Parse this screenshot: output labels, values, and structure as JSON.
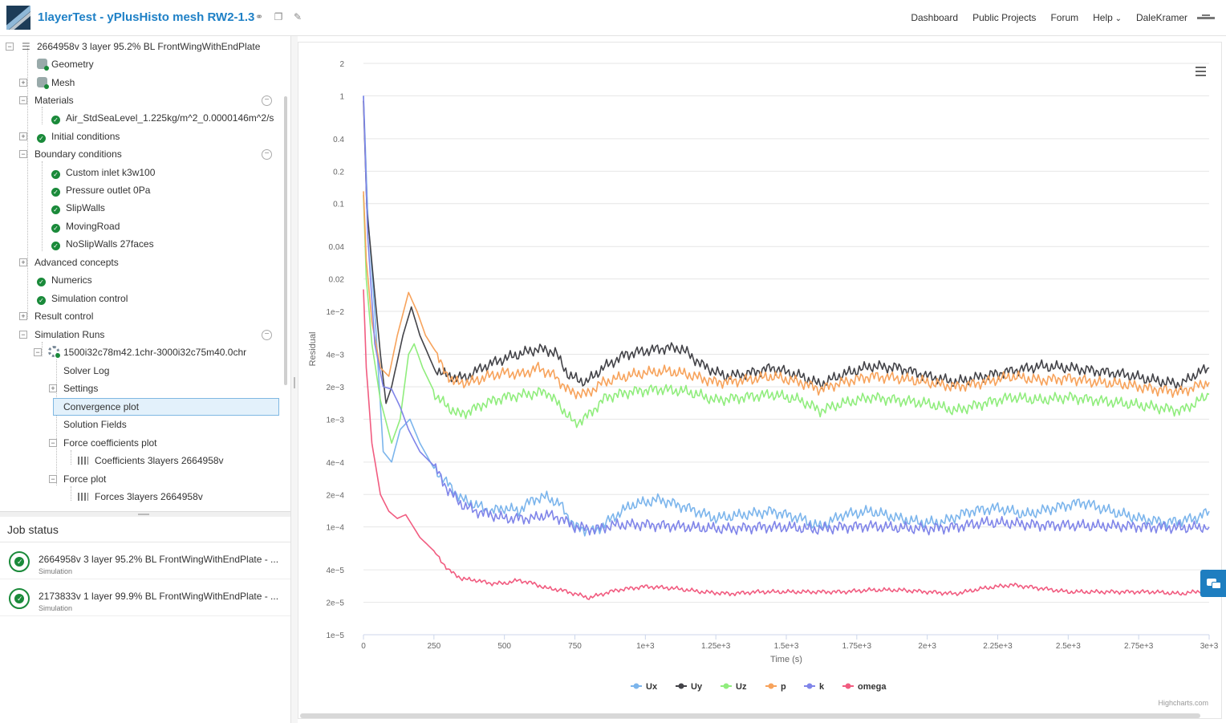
{
  "header": {
    "title": "1layerTest - yPlusHisto mesh RW2-1.3",
    "nav": [
      "Dashboard",
      "Public Projects",
      "Forum",
      "Help"
    ],
    "user": "DaleKramer"
  },
  "tree": {
    "root": "2664958v 3 layer 95.2% BL FrontWingWithEndPlate",
    "geometry": "Geometry",
    "mesh": "Mesh",
    "materials": "Materials",
    "material_item": "Air_StdSeaLevel_1.225kg/m^2_0.0000146m^2/s",
    "initial_conditions": "Initial conditions",
    "boundary_conditions": "Boundary conditions",
    "boundaries": [
      "Custom inlet k3w100",
      "Pressure outlet 0Pa",
      "SlipWalls",
      "MovingRoad",
      "NoSlipWalls 27faces"
    ],
    "advanced_concepts": "Advanced concepts",
    "numerics": "Numerics",
    "simulation_control": "Simulation control",
    "result_control": "Result control",
    "simulation_runs": "Simulation Runs",
    "run": "1500i32c78m42.1chr-3000i32c75m40.0chr",
    "solver_log": "Solver Log",
    "settings": "Settings",
    "convergence_plot": "Convergence plot",
    "solution_fields": "Solution Fields",
    "force_coefficients_plot": "Force coefficients plot",
    "coefficients_item": "Coefficients 3layers 2664958v",
    "force_plot": "Force plot",
    "forces_item": "Forces 3layers 2664958v"
  },
  "jobs": {
    "title": "Job status",
    "items": [
      {
        "name": "2664958v 3 layer 95.2% BL FrontWingWithEndPlate - ...",
        "type": "Simulation"
      },
      {
        "name": "2173833v 1 layer 99.9% BL FrontWingWithEndPlate - ...",
        "type": "Simulation"
      }
    ]
  },
  "chart_data": {
    "type": "line",
    "title": "",
    "xlabel": "Time (s)",
    "ylabel": "Residual",
    "xlim": [
      0,
      3000
    ],
    "ylog": true,
    "ylim": [
      1e-05,
      2
    ],
    "x_ticks": [
      "0",
      "250",
      "500",
      "750",
      "1e+3",
      "1.25e+3",
      "1.5e+3",
      "1.75e+3",
      "2e+3",
      "2.25e+3",
      "2.5e+3",
      "2.75e+3",
      "3e+3"
    ],
    "y_ticks": [
      "2",
      "1",
      "0.4",
      "0.2",
      "0.1",
      "0.04",
      "0.02",
      "1e−2",
      "4e−3",
      "2e−3",
      "1e−3",
      "4e−4",
      "2e−4",
      "1e−4",
      "4e−5",
      "2e−5",
      "1e−5"
    ],
    "credit": "Highcharts.com",
    "series": [
      {
        "name": "Ux",
        "color": "#7cb5ec",
        "points": [
          [
            0,
            1
          ],
          [
            15,
            0.08
          ],
          [
            40,
            0.01
          ],
          [
            70,
            0.0005
          ],
          [
            100,
            0.0004
          ],
          [
            130,
            0.0008
          ],
          [
            165,
            0.001
          ],
          [
            200,
            0.0006
          ],
          [
            250,
            0.00035
          ],
          [
            300,
            0.00025
          ],
          [
            350,
            0.00018
          ],
          [
            400,
            0.00016
          ],
          [
            450,
            0.00014
          ],
          [
            500,
            0.00015
          ],
          [
            550,
            0.00014
          ],
          [
            600,
            0.00018
          ],
          [
            650,
            0.00019
          ],
          [
            700,
            0.00016
          ],
          [
            750,
            0.0001
          ],
          [
            820,
            9e-05
          ],
          [
            880,
            0.00012
          ],
          [
            950,
            0.00016
          ],
          [
            1050,
            0.00018
          ],
          [
            1150,
            0.00015
          ],
          [
            1250,
            0.00012
          ],
          [
            1350,
            0.00013
          ],
          [
            1450,
            0.00014
          ],
          [
            1550,
            0.00012
          ],
          [
            1620,
            0.0001
          ],
          [
            1700,
            0.00013
          ],
          [
            1800,
            0.00014
          ],
          [
            1900,
            0.00012
          ],
          [
            1980,
            0.00011
          ],
          [
            2050,
            0.00011
          ],
          [
            2150,
            0.00014
          ],
          [
            2250,
            0.00015
          ],
          [
            2350,
            0.00013
          ],
          [
            2450,
            0.00015
          ],
          [
            2550,
            0.00017
          ],
          [
            2650,
            0.00014
          ],
          [
            2750,
            0.00012
          ],
          [
            2850,
            0.00011
          ],
          [
            2950,
            0.00012
          ],
          [
            3000,
            0.00014
          ]
        ]
      },
      {
        "name": "Uy",
        "color": "#434348",
        "points": [
          [
            0,
            0.9
          ],
          [
            12,
            0.09
          ],
          [
            35,
            0.02
          ],
          [
            60,
            0.004
          ],
          [
            80,
            0.0014
          ],
          [
            100,
            0.002
          ],
          [
            140,
            0.006
          ],
          [
            170,
            0.011
          ],
          [
            200,
            0.006
          ],
          [
            250,
            0.003
          ],
          [
            300,
            0.0025
          ],
          [
            360,
            0.0024
          ],
          [
            420,
            0.003
          ],
          [
            480,
            0.0035
          ],
          [
            550,
            0.004
          ],
          [
            620,
            0.0045
          ],
          [
            680,
            0.0042
          ],
          [
            730,
            0.0025
          ],
          [
            790,
            0.0022
          ],
          [
            850,
            0.003
          ],
          [
            930,
            0.004
          ],
          [
            1000,
            0.0043
          ],
          [
            1080,
            0.0046
          ],
          [
            1130,
            0.0045
          ],
          [
            1200,
            0.0032
          ],
          [
            1280,
            0.0025
          ],
          [
            1350,
            0.0026
          ],
          [
            1450,
            0.003
          ],
          [
            1550,
            0.0025
          ],
          [
            1620,
            0.0021
          ],
          [
            1700,
            0.0026
          ],
          [
            1800,
            0.0031
          ],
          [
            1900,
            0.003
          ],
          [
            2000,
            0.0025
          ],
          [
            2100,
            0.0022
          ],
          [
            2200,
            0.0025
          ],
          [
            2300,
            0.0028
          ],
          [
            2400,
            0.0031
          ],
          [
            2500,
            0.003
          ],
          [
            2600,
            0.0028
          ],
          [
            2700,
            0.0026
          ],
          [
            2800,
            0.0023
          ],
          [
            2900,
            0.0021
          ],
          [
            2950,
            0.0026
          ],
          [
            3000,
            0.003
          ]
        ]
      },
      {
        "name": "Uz",
        "color": "#90ed7d",
        "points": [
          [
            0,
            0.12
          ],
          [
            10,
            0.02
          ],
          [
            30,
            0.005
          ],
          [
            60,
            0.0015
          ],
          [
            100,
            0.0006
          ],
          [
            130,
            0.001
          ],
          [
            160,
            0.004
          ],
          [
            180,
            0.005
          ],
          [
            210,
            0.003
          ],
          [
            260,
            0.0016
          ],
          [
            300,
            0.0013
          ],
          [
            340,
            0.0011
          ],
          [
            380,
            0.0012
          ],
          [
            430,
            0.0014
          ],
          [
            500,
            0.0016
          ],
          [
            580,
            0.0017
          ],
          [
            650,
            0.0018
          ],
          [
            700,
            0.0013
          ],
          [
            750,
            0.0009
          ],
          [
            800,
            0.0011
          ],
          [
            860,
            0.0016
          ],
          [
            950,
            0.0018
          ],
          [
            1050,
            0.0019
          ],
          [
            1150,
            0.0018
          ],
          [
            1250,
            0.0015
          ],
          [
            1350,
            0.0016
          ],
          [
            1450,
            0.0017
          ],
          [
            1550,
            0.0015
          ],
          [
            1620,
            0.0012
          ],
          [
            1700,
            0.0014
          ],
          [
            1800,
            0.0016
          ],
          [
            1900,
            0.0015
          ],
          [
            2000,
            0.0014
          ],
          [
            2100,
            0.0012
          ],
          [
            2200,
            0.0014
          ],
          [
            2300,
            0.0016
          ],
          [
            2400,
            0.0015
          ],
          [
            2500,
            0.0016
          ],
          [
            2600,
            0.0015
          ],
          [
            2700,
            0.0014
          ],
          [
            2800,
            0.0013
          ],
          [
            2900,
            0.0012
          ],
          [
            2950,
            0.0014
          ],
          [
            3000,
            0.0017
          ]
        ]
      },
      {
        "name": "p",
        "color": "#f7a35c",
        "points": [
          [
            0,
            0.13
          ],
          [
            10,
            0.03
          ],
          [
            30,
            0.008
          ],
          [
            60,
            0.003
          ],
          [
            90,
            0.0025
          ],
          [
            120,
            0.006
          ],
          [
            160,
            0.015
          ],
          [
            190,
            0.01
          ],
          [
            220,
            0.006
          ],
          [
            250,
            0.0045
          ],
          [
            280,
            0.003
          ],
          [
            320,
            0.0022
          ],
          [
            380,
            0.0022
          ],
          [
            440,
            0.0025
          ],
          [
            500,
            0.0027
          ],
          [
            560,
            0.0026
          ],
          [
            620,
            0.003
          ],
          [
            680,
            0.0025
          ],
          [
            730,
            0.0018
          ],
          [
            790,
            0.0017
          ],
          [
            850,
            0.0022
          ],
          [
            930,
            0.0025
          ],
          [
            1000,
            0.0027
          ],
          [
            1080,
            0.0028
          ],
          [
            1150,
            0.0026
          ],
          [
            1250,
            0.0022
          ],
          [
            1350,
            0.0023
          ],
          [
            1450,
            0.0025
          ],
          [
            1550,
            0.0022
          ],
          [
            1620,
            0.0019
          ],
          [
            1700,
            0.0022
          ],
          [
            1800,
            0.0025
          ],
          [
            1900,
            0.0024
          ],
          [
            2000,
            0.0022
          ],
          [
            2100,
            0.002
          ],
          [
            2200,
            0.0022
          ],
          [
            2300,
            0.0025
          ],
          [
            2400,
            0.0023
          ],
          [
            2500,
            0.0024
          ],
          [
            2600,
            0.0022
          ],
          [
            2700,
            0.0021
          ],
          [
            2800,
            0.0019
          ],
          [
            2900,
            0.0018
          ],
          [
            2950,
            0.002
          ],
          [
            3000,
            0.0022
          ]
        ]
      },
      {
        "name": "k",
        "color": "#8085e9",
        "points": [
          [
            0,
            1
          ],
          [
            15,
            0.05
          ],
          [
            40,
            0.005
          ],
          [
            70,
            0.002
          ],
          [
            100,
            0.0019
          ],
          [
            130,
            0.0013
          ],
          [
            160,
            0.0008
          ],
          [
            200,
            0.0005
          ],
          [
            250,
            0.00037
          ],
          [
            300,
            0.00022
          ],
          [
            350,
            0.00016
          ],
          [
            400,
            0.00014
          ],
          [
            450,
            0.00013
          ],
          [
            500,
            0.00012
          ],
          [
            550,
            0.00012
          ],
          [
            600,
            0.00012
          ],
          [
            650,
            0.00013
          ],
          [
            700,
            0.00012
          ],
          [
            750,
            0.0001
          ],
          [
            820,
            9.5e-05
          ],
          [
            900,
            0.000105
          ],
          [
            1000,
            0.000105
          ],
          [
            1100,
            0.000102
          ],
          [
            1200,
            9.8e-05
          ],
          [
            1300,
            9.6e-05
          ],
          [
            1400,
            0.0001
          ],
          [
            1500,
            0.0001
          ],
          [
            1600,
            9.5e-05
          ],
          [
            1700,
            0.0001
          ],
          [
            1800,
            0.000102
          ],
          [
            1900,
            9.8e-05
          ],
          [
            2000,
            9.6e-05
          ],
          [
            2100,
            0.0001
          ],
          [
            2200,
            0.00011
          ],
          [
            2300,
            0.000108
          ],
          [
            2400,
            0.000104
          ],
          [
            2500,
            0.000104
          ],
          [
            2600,
            0.000102
          ],
          [
            2700,
            0.000102
          ],
          [
            2800,
            0.0001
          ],
          [
            2900,
            9.8e-05
          ],
          [
            3000,
            0.0001
          ]
        ]
      },
      {
        "name": "omega",
        "color": "#f15c80",
        "points": [
          [
            0,
            0.016
          ],
          [
            10,
            0.003
          ],
          [
            30,
            0.0006
          ],
          [
            60,
            0.0002
          ],
          [
            90,
            0.00014
          ],
          [
            120,
            0.00012
          ],
          [
            150,
            0.00013
          ],
          [
            200,
            8e-05
          ],
          [
            250,
            6e-05
          ],
          [
            300,
            4e-05
          ],
          [
            350,
            3.3e-05
          ],
          [
            400,
            3.2e-05
          ],
          [
            450,
            3e-05
          ],
          [
            500,
            3e-05
          ],
          [
            550,
            3.2e-05
          ],
          [
            600,
            3e-05
          ],
          [
            650,
            2.7e-05
          ],
          [
            700,
            2.6e-05
          ],
          [
            750,
            2.4e-05
          ],
          [
            800,
            2.2e-05
          ],
          [
            850,
            2.4e-05
          ],
          [
            900,
            2.6e-05
          ],
          [
            1000,
            2.8e-05
          ],
          [
            1100,
            2.7e-05
          ],
          [
            1200,
            2.5e-05
          ],
          [
            1300,
            2.4e-05
          ],
          [
            1400,
            2.5e-05
          ],
          [
            1500,
            2.5e-05
          ],
          [
            1600,
            2.5e-05
          ],
          [
            1700,
            2.5e-05
          ],
          [
            1800,
            2.6e-05
          ],
          [
            1900,
            2.6e-05
          ],
          [
            2000,
            2.5e-05
          ],
          [
            2100,
            2.4e-05
          ],
          [
            2200,
            2.7e-05
          ],
          [
            2300,
            2.9e-05
          ],
          [
            2400,
            2.7e-05
          ],
          [
            2500,
            2.5e-05
          ],
          [
            2600,
            2.5e-05
          ],
          [
            2700,
            2.5e-05
          ],
          [
            2800,
            2.5e-05
          ],
          [
            2900,
            2.4e-05
          ],
          [
            3000,
            2.6e-05
          ]
        ]
      }
    ]
  }
}
